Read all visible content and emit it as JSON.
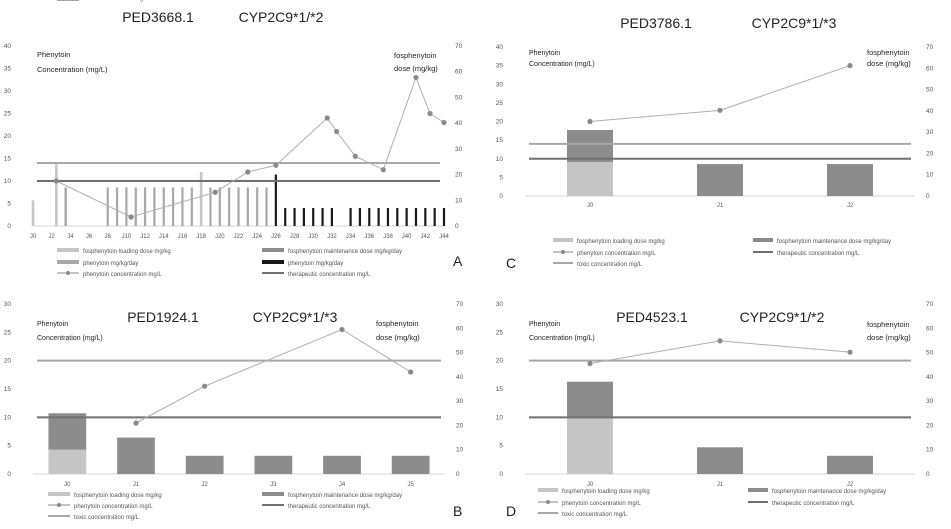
{
  "chart_data": [
    {
      "id": "A",
      "type": "bar",
      "panel_label": "A",
      "title": "PED3668.1",
      "genotype": "CYP2C9*1/*2",
      "ylabel_left": "Phenytoin\nConcentration (mg/L)",
      "ylabel_right": "fosphenytoin\ndose (mg/kg)",
      "ylim_left": [
        0,
        40
      ],
      "ylim_right": [
        0,
        70
      ],
      "yticks_left": [
        "0",
        "5",
        "10",
        "15",
        "20",
        "25",
        "30",
        "35",
        "40"
      ],
      "yticks_right": [
        "0",
        "10",
        "20",
        "30",
        "40",
        "50",
        "60",
        "70"
      ],
      "x_tick_labels": [
        "J0",
        "J2",
        "J4",
        "J6",
        "J8",
        "J10",
        "J12",
        "J14",
        "J16",
        "J18",
        "J20",
        "J22",
        "J24",
        "J26",
        "J28",
        "J30",
        "J32",
        "J34",
        "J36",
        "J38",
        "J40",
        "J42",
        "J44"
      ],
      "x_range": [
        0,
        44
      ],
      "therapeutic": 10,
      "toxic": 14,
      "loading_dose": [
        {
          "x": 0,
          "y": 10
        },
        {
          "x": 2.5,
          "y": 24
        },
        {
          "x": 3.5,
          "y": 15
        },
        {
          "x": 18,
          "y": 21
        }
      ],
      "maintenance_dose": [],
      "phenytoin_dose": [
        3.5,
        8,
        9,
        10,
        11,
        12,
        13,
        14,
        15,
        16,
        17,
        19,
        20,
        21,
        22,
        23,
        24,
        25
      ],
      "phenytoin_dose_value": 15,
      "phenytoin_dark": [
        26,
        27,
        28,
        29,
        30,
        31,
        32,
        34,
        35,
        36,
        37,
        38,
        39,
        40,
        41,
        42,
        43,
        44
      ],
      "phenytoin_dark_value": 7,
      "phenytoin_dark_peak": {
        "x": 26,
        "y": 20
      },
      "concentration": [
        {
          "x": 2.5,
          "y": 10
        },
        {
          "x": 10.5,
          "y": 2
        },
        {
          "x": 19.5,
          "y": 7.5
        },
        {
          "x": 23,
          "y": 12
        },
        {
          "x": 26,
          "y": 13.5
        },
        {
          "x": 31.5,
          "y": 24
        },
        {
          "x": 32.5,
          "y": 21
        },
        {
          "x": 34.5,
          "y": 15.5
        },
        {
          "x": 37.5,
          "y": 12.5
        },
        {
          "x": 41,
          "y": 33
        },
        {
          "x": 42.5,
          "y": 25
        },
        {
          "x": 44,
          "y": 23
        }
      ],
      "legend": [
        {
          "label": "fosphenytoin loading dose mg/kg",
          "kind": "bar",
          "color": "#c5c5c5"
        },
        {
          "label": "fosphenytoin maintenance dose mg/kg/day",
          "kind": "bar",
          "color": "#8c8c8c"
        },
        {
          "label": "phenytoin mg/kg/day",
          "kind": "bar",
          "color": "#a8a8a8"
        },
        {
          "label": "phenytoin mg/kg/day",
          "kind": "bar",
          "color": "#1a1a1a"
        },
        {
          "label": "phenytoin concentration mg/L",
          "kind": "dotline",
          "color": "#8a8a8a"
        },
        {
          "label": "therapeutic concentration mg/L",
          "kind": "line",
          "color": "#707070"
        },
        {
          "label": "toxic concentration mg/L",
          "kind": "line",
          "color": "#a8a8a8"
        }
      ]
    },
    {
      "id": "C",
      "type": "bar",
      "panel_label": "C",
      "title": "PED3786.1",
      "genotype": "CYP2C9*1/*3",
      "ylabel_left": "Phenytoin\nConcentration (mg/L)",
      "ylabel_right": "fosphenytoin\ndose (mg/kg)",
      "ylim_left": [
        0,
        40
      ],
      "ylim_right": [
        0,
        70
      ],
      "yticks_left": [
        "0",
        "5",
        "10",
        "15",
        "20",
        "25",
        "30",
        "35",
        "40"
      ],
      "yticks_right": [
        "0",
        "10",
        "20",
        "30",
        "40",
        "50",
        "60",
        "70"
      ],
      "categories": [
        "J0",
        "J1",
        "J2"
      ],
      "therapeutic": 10,
      "toxic": 14,
      "loading_dose": [
        16,
        0,
        0
      ],
      "maintenance_dose": [
        15,
        15,
        15
      ],
      "concentration": [
        20,
        23,
        35
      ],
      "legend": [
        {
          "label": "fosphenytoin loading dose mg/kg",
          "kind": "bar",
          "color": "#c5c5c5"
        },
        {
          "label": "fosphenytoin maintenance dose mg/kg/day",
          "kind": "bar",
          "color": "#8c8c8c"
        },
        {
          "label": "phenytoin concentration mg/L",
          "kind": "dotline",
          "color": "#8a8a8a"
        },
        {
          "label": "therapeutic concentration mg/L",
          "kind": "line",
          "color": "#707070"
        },
        {
          "label": "toxic concentration mg/L",
          "kind": "line",
          "color": "#a8a8a8"
        }
      ]
    },
    {
      "id": "B",
      "type": "bar",
      "panel_label": "B",
      "title": "PED1924.1",
      "genotype": "CYP2C9*1/*3",
      "ylabel_left": "Phenytoin\nConcentration (mg/L)",
      "ylabel_right": "fosphenytoin\ndose (mg/kg)",
      "ylim_left": [
        0,
        30
      ],
      "ylim_right": [
        0,
        70
      ],
      "yticks_left": [
        "0",
        "5",
        "10",
        "15",
        "20",
        "25",
        "30"
      ],
      "yticks_right": [
        "0",
        "10",
        "20",
        "30",
        "40",
        "50",
        "60",
        "70"
      ],
      "categories": [
        "J0",
        "J1",
        "J2",
        "J3",
        "J4",
        "J5"
      ],
      "therapeutic": 10,
      "toxic": 20,
      "loading_dose": [
        10,
        0,
        0,
        0,
        0,
        0
      ],
      "maintenance_dose": [
        15,
        15,
        7.5,
        7.5,
        7.5,
        7.5
      ],
      "concentration": [
        9,
        15.5,
        25.5,
        18
      ],
      "concentration_x": [
        1,
        2,
        4,
        5
      ],
      "legend": [
        {
          "label": "fosphenytoin loading dose mg/kg",
          "kind": "bar",
          "color": "#c5c5c5"
        },
        {
          "label": "fosphenytoin maintenance dose mg/kg/day",
          "kind": "bar",
          "color": "#8c8c8c"
        },
        {
          "label": "phenytoin concentration mg/L",
          "kind": "dotline",
          "color": "#8a8a8a"
        },
        {
          "label": "therapeutic concentration mg/L",
          "kind": "line",
          "color": "#707070"
        },
        {
          "label": "toxic concentration mg/L",
          "kind": "line",
          "color": "#a8a8a8"
        }
      ]
    },
    {
      "id": "D",
      "type": "bar",
      "panel_label": "D",
      "title": "PED4523.1",
      "genotype": "CYP2C9*1/*2",
      "ylabel_left": "Phenytoin\nConcentration (mg/L)",
      "ylabel_right": "fosphenytoin\ndose (mg/kg)",
      "ylim_left": [
        0,
        30
      ],
      "ylim_right": [
        0,
        70
      ],
      "yticks_left": [
        "0",
        "5",
        "10",
        "15",
        "20",
        "25",
        "30"
      ],
      "yticks_right": [
        "0",
        "10",
        "20",
        "30",
        "40",
        "50",
        "60",
        "70"
      ],
      "categories": [
        "J0",
        "J1",
        "J2"
      ],
      "therapeutic": 10,
      "toxic": 20,
      "loading_dose": [
        23,
        0,
        0
      ],
      "maintenance_dose": [
        15,
        11,
        7.5
      ],
      "concentration": [
        19.5,
        23.5,
        21.5
      ],
      "legend": [
        {
          "label": "fosphenytoin loading dose mg/kg",
          "kind": "bar",
          "color": "#c5c5c5"
        },
        {
          "label": "fosphenytoin maintenance dose mg/kg/day",
          "kind": "bar",
          "color": "#8c8c8c"
        },
        {
          "label": "phenytoin concentration mg/L",
          "kind": "dotline",
          "color": "#8a8a8a"
        },
        {
          "label": "therapeutic concentration mg/L",
          "kind": "line",
          "color": "#707070"
        },
        {
          "label": "toxic concentration mg/L",
          "kind": "line",
          "color": "#a8a8a8"
        }
      ]
    }
  ]
}
